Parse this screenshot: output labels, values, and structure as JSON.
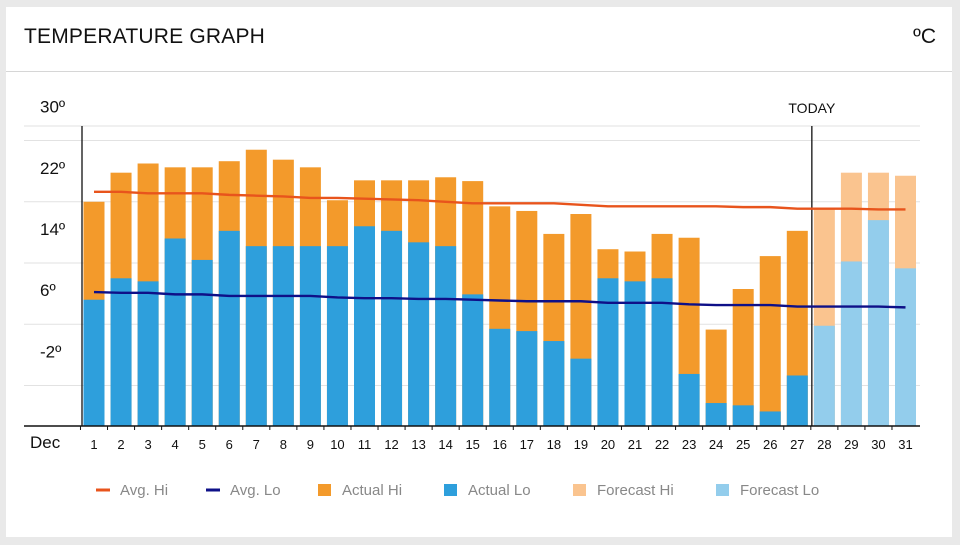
{
  "header": {
    "title": "TEMPERATURE GRAPH",
    "unit": "ºC"
  },
  "chart_data": {
    "type": "bar",
    "title": "TEMPERATURE GRAPH",
    "x_label_prefix": "Dec",
    "categories": [
      "1",
      "2",
      "3",
      "4",
      "5",
      "6",
      "7",
      "8",
      "9",
      "10",
      "11",
      "12",
      "13",
      "14",
      "15",
      "16",
      "17",
      "18",
      "19",
      "20",
      "21",
      "22",
      "23",
      "24",
      "25",
      "26",
      "27",
      "28",
      "29",
      "30",
      "31"
    ],
    "y_ticks": [
      "30º",
      "22º",
      "14º",
      "6º",
      "-2º"
    ],
    "y_tick_values": [
      30,
      22,
      14,
      6,
      -2
    ],
    "ylim": [
      -7.3,
      31.9
    ],
    "today_index": 27,
    "today_label": "TODAY",
    "series": [
      {
        "name": "Actual Hi",
        "type": "bar",
        "color": "#f39a2b",
        "values": [
          22,
          25.8,
          27,
          26.5,
          26.5,
          27.3,
          28.8,
          27.5,
          26.5,
          22.2,
          24.8,
          24.8,
          24.8,
          25.2,
          24.7,
          21.4,
          20.8,
          17.8,
          20.4,
          15.8,
          15.5,
          17.8,
          17.3,
          5.3,
          10.6,
          14.9,
          18.2,
          null,
          null,
          null,
          null
        ]
      },
      {
        "name": "Actual Lo",
        "type": "bar",
        "color": "#2e9fdc",
        "values": [
          9.2,
          12,
          11.6,
          17.2,
          14.4,
          18.2,
          16.2,
          16.2,
          16.2,
          16.2,
          18.8,
          18.2,
          16.7,
          16.2,
          9.9,
          5.4,
          5.1,
          3.8,
          1.5,
          12,
          11.6,
          12,
          -0.5,
          -4.3,
          -4.6,
          -5.4,
          -0.7,
          null,
          null,
          null,
          null
        ]
      },
      {
        "name": "Forecast Hi",
        "type": "bar",
        "color": "#fac48f",
        "values": [
          null,
          null,
          null,
          null,
          null,
          null,
          null,
          null,
          null,
          null,
          null,
          null,
          null,
          null,
          null,
          null,
          null,
          null,
          null,
          null,
          null,
          null,
          null,
          null,
          null,
          null,
          null,
          21,
          25.8,
          25.8,
          25.4
        ]
      },
      {
        "name": "Forecast Lo",
        "type": "bar",
        "color": "#93cdec",
        "values": [
          null,
          null,
          null,
          null,
          null,
          null,
          null,
          null,
          null,
          null,
          null,
          null,
          null,
          null,
          null,
          null,
          null,
          null,
          null,
          null,
          null,
          null,
          null,
          null,
          null,
          null,
          null,
          5.8,
          14.2,
          19.6,
          13.3
        ]
      },
      {
        "name": "Avg. Hi",
        "type": "line",
        "color": "#e8541c",
        "values": [
          23.3,
          23.3,
          23.1,
          23.1,
          23.1,
          22.9,
          22.8,
          22.7,
          22.5,
          22.5,
          22.4,
          22.3,
          22.2,
          22,
          21.8,
          21.8,
          21.8,
          21.8,
          21.6,
          21.4,
          21.4,
          21.4,
          21.4,
          21.4,
          21.3,
          21.3,
          21.1,
          21.1,
          21.1,
          21,
          21
        ]
      },
      {
        "name": "Avg. Lo",
        "type": "line",
        "color": "#0e1088",
        "values": [
          10.2,
          10.1,
          10.1,
          9.9,
          9.9,
          9.7,
          9.7,
          9.7,
          9.7,
          9.5,
          9.4,
          9.4,
          9.3,
          9.3,
          9.2,
          9.1,
          9,
          9,
          9,
          8.8,
          8.8,
          8.8,
          8.6,
          8.5,
          8.5,
          8.5,
          8.3,
          8.3,
          8.3,
          8.3,
          8.2
        ]
      }
    ],
    "legend": [
      "Avg. Hi",
      "Avg. Lo",
      "Actual Hi",
      "Actual Lo",
      "Forecast Hi",
      "Forecast Lo"
    ],
    "legend_position": "bottom",
    "grid": true
  }
}
